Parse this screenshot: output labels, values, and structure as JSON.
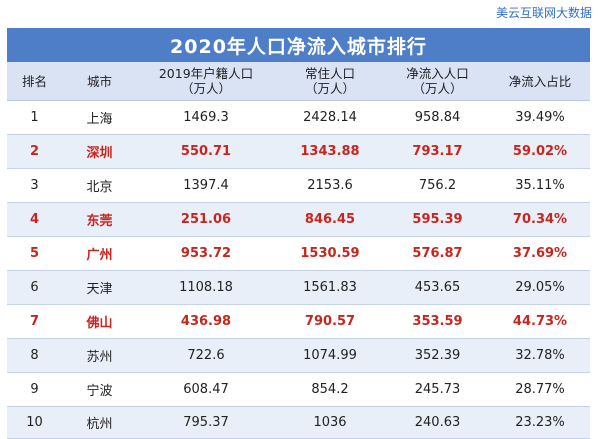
{
  "brand": "美云互联网大数据",
  "title": "2020年人口净流入城市排行",
  "headers": {
    "rank": "排名",
    "city": "城市",
    "hukou_line1": "2019年户籍人口",
    "hukou_line2": "（万人）",
    "resident_line1": "常住人口",
    "resident_line2": "（万人）",
    "net_line1": "净流入人口",
    "net_line2": "（万人）",
    "ratio": "净流入占比"
  },
  "rows": [
    {
      "rank": "1",
      "city": "上海",
      "hukou": "1469.3",
      "resident": "2428.14",
      "net": "958.84",
      "ratio": "39.49%",
      "highlight": false
    },
    {
      "rank": "2",
      "city": "深圳",
      "hukou": "550.71",
      "resident": "1343.88",
      "net": "793.17",
      "ratio": "59.02%",
      "highlight": true
    },
    {
      "rank": "3",
      "city": "北京",
      "hukou": "1397.4",
      "resident": "2153.6",
      "net": "756.2",
      "ratio": "35.11%",
      "highlight": false
    },
    {
      "rank": "4",
      "city": "东莞",
      "hukou": "251.06",
      "resident": "846.45",
      "net": "595.39",
      "ratio": "70.34%",
      "highlight": true
    },
    {
      "rank": "5",
      "city": "广州",
      "hukou": "953.72",
      "resident": "1530.59",
      "net": "576.87",
      "ratio": "37.69%",
      "highlight": true
    },
    {
      "rank": "6",
      "city": "天津",
      "hukou": "1108.18",
      "resident": "1561.83",
      "net": "453.65",
      "ratio": "29.05%",
      "highlight": false
    },
    {
      "rank": "7",
      "city": "佛山",
      "hukou": "436.98",
      "resident": "790.57",
      "net": "353.59",
      "ratio": "44.73%",
      "highlight": true
    },
    {
      "rank": "8",
      "city": "苏州",
      "hukou": "722.6",
      "resident": "1074.99",
      "net": "352.39",
      "ratio": "32.78%",
      "highlight": false
    },
    {
      "rank": "9",
      "city": "宁波",
      "hukou": "608.47",
      "resident": "854.2",
      "net": "245.73",
      "ratio": "28.77%",
      "highlight": false
    },
    {
      "rank": "10",
      "city": "杭州",
      "hukou": "795.37",
      "resident": "1036",
      "net": "240.63",
      "ratio": "23.23%",
      "highlight": false
    }
  ],
  "colors": {
    "title_bg": "#4f7ec9",
    "header_bg": "#d9e3f3",
    "stripe_bg": "#e9eff8",
    "highlight_text": "#c7261f",
    "brand_text": "#2f6fc6"
  }
}
